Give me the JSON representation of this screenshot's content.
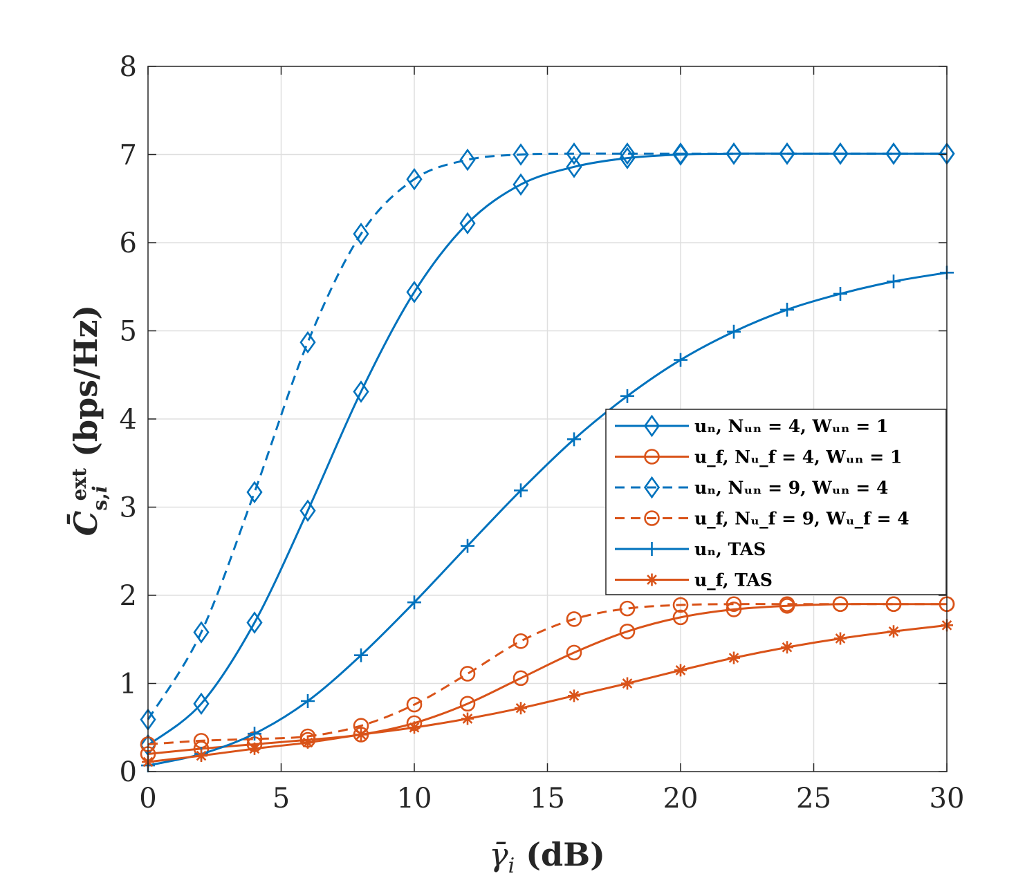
{
  "chart_data": {
    "type": "line",
    "title": "",
    "xlabel": "γ̄ᵢ (dB)",
    "ylabel": "C̄ˢ,ᵢᵉˣᵗ (bps/Hz)",
    "xlim": [
      0,
      30
    ],
    "ylim": [
      0,
      8
    ],
    "xticks": [
      0,
      5,
      10,
      15,
      20,
      25,
      30
    ],
    "yticks": [
      0,
      1,
      2,
      3,
      4,
      5,
      6,
      7,
      8
    ],
    "grid": true,
    "legend_position": "center-right",
    "colors": {
      "blue": "#0072BD",
      "orange": "#D95319"
    },
    "series": [
      {
        "name": "uₙ, Nᵤₙ = 4, Wᵤₙ = 1",
        "color": "#0072BD",
        "dash": "solid",
        "marker": "diamond",
        "x": [
          0,
          2,
          4,
          6,
          8,
          10,
          12,
          14,
          16,
          18,
          20,
          22,
          24,
          26,
          28,
          30
        ],
        "y": [
          0.3,
          0.77,
          1.69,
          2.96,
          4.31,
          5.44,
          6.22,
          6.66,
          6.86,
          6.96,
          7.0,
          7.01,
          7.01,
          7.01,
          7.01,
          7.01
        ]
      },
      {
        "name": "u_f, Nᵤ_f = 4, Wᵤₙ = 1",
        "color": "#D95319",
        "dash": "solid",
        "marker": "circle",
        "x": [
          0,
          2,
          4,
          6,
          8,
          10,
          12,
          14,
          16,
          18,
          20,
          22,
          24,
          26,
          28,
          30
        ],
        "y": [
          0.2,
          0.26,
          0.31,
          0.36,
          0.42,
          0.55,
          0.77,
          1.06,
          1.35,
          1.59,
          1.75,
          1.84,
          1.88,
          1.9,
          1.9,
          1.9
        ]
      },
      {
        "name": "uₙ, Nᵤₙ = 9, Wᵤₙ = 4",
        "color": "#0072BD",
        "dash": "dashed",
        "marker": "diamond",
        "x": [
          0,
          2,
          4,
          6,
          8,
          10,
          12,
          14,
          16,
          18,
          20,
          22,
          24,
          26,
          28,
          30
        ],
        "y": [
          0.59,
          1.58,
          3.17,
          4.87,
          6.1,
          6.72,
          6.94,
          7.0,
          7.01,
          7.01,
          7.01,
          7.01,
          7.01,
          7.01,
          7.01,
          7.01
        ]
      },
      {
        "name": "u_f, Nᵤ_f = 9, Wᵤ_f = 4",
        "color": "#D95319",
        "dash": "dashed",
        "marker": "circle",
        "x": [
          0,
          2,
          4,
          6,
          8,
          10,
          12,
          14,
          16,
          18,
          20,
          22,
          24,
          26,
          28,
          30
        ],
        "y": [
          0.31,
          0.35,
          0.37,
          0.4,
          0.52,
          0.76,
          1.11,
          1.48,
          1.73,
          1.85,
          1.89,
          1.9,
          1.9,
          1.9,
          1.9,
          1.9
        ]
      },
      {
        "name": "uₙ, TAS",
        "color": "#0072BD",
        "dash": "solid",
        "marker": "plus",
        "x": [
          0,
          2,
          4,
          6,
          8,
          10,
          12,
          14,
          16,
          18,
          20,
          22,
          24,
          26,
          28,
          30
        ],
        "y": [
          0.07,
          0.2,
          0.43,
          0.8,
          1.32,
          1.92,
          2.56,
          3.19,
          3.77,
          4.26,
          4.67,
          4.99,
          5.24,
          5.42,
          5.56,
          5.66
        ]
      },
      {
        "name": "u_f, TAS",
        "color": "#D95319",
        "dash": "solid",
        "marker": "asterisk",
        "x": [
          0,
          2,
          4,
          6,
          8,
          10,
          12,
          14,
          16,
          18,
          20,
          22,
          24,
          26,
          28,
          30
        ],
        "y": [
          0.11,
          0.18,
          0.26,
          0.33,
          0.42,
          0.5,
          0.6,
          0.72,
          0.86,
          1.0,
          1.15,
          1.29,
          1.41,
          1.51,
          1.59,
          1.66
        ]
      }
    ]
  }
}
